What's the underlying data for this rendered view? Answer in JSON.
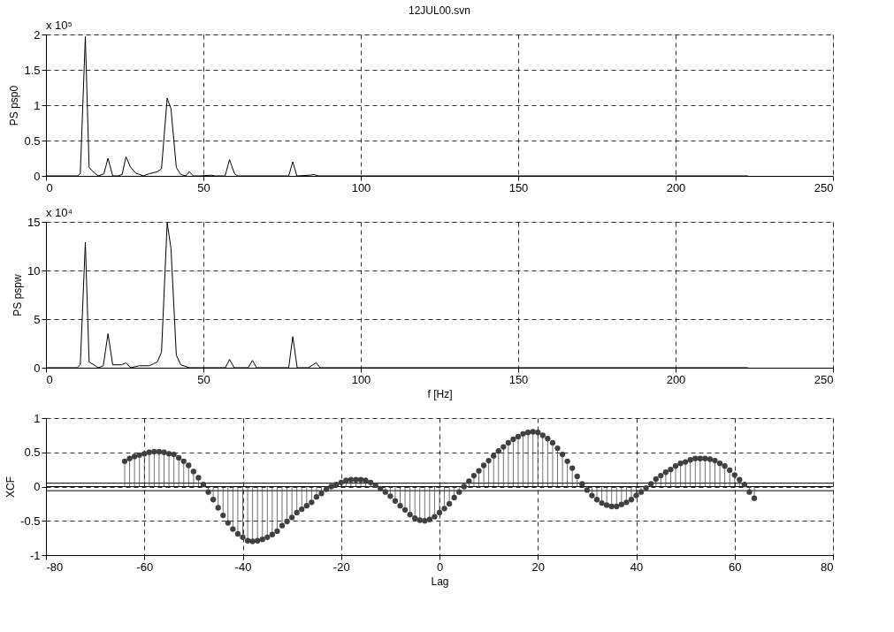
{
  "chart_data": [
    {
      "type": "line",
      "title": "12JUL00.svn",
      "ylabel": "PS psp0",
      "annotations": [
        "x 10⁵"
      ],
      "series": [
        {
          "color": "#000000",
          "x": [
            0,
            9.9,
            10.9,
            12.5,
            13.7,
            15.2,
            16.6,
            18.4,
            19.7,
            21.2,
            22.8,
            24.2,
            25.4,
            26.9,
            28.5,
            30.9,
            32.7,
            35.4,
            36.7,
            38.5,
            39.7,
            41.4,
            42.8,
            44.4,
            45.5,
            46.8,
            48.8,
            52.4,
            53.8,
            56.9,
            58.3,
            59.9,
            60.9,
            77.1,
            78.4,
            79.7,
            83.8,
            85.1,
            86.5,
            223
          ],
          "values": [
            0,
            0,
            0.03,
            1.97,
            0.12,
            0.05,
            0,
            0.03,
            0.25,
            0,
            0,
            0.02,
            0.27,
            0.12,
            0.04,
            0,
            0.03,
            0.06,
            0.1,
            1.1,
            0.95,
            0.12,
            0.02,
            0,
            0.06,
            0,
            0,
            0.01,
            0,
            0,
            0.23,
            0.03,
            0,
            0,
            0.2,
            0,
            0.01,
            0.02,
            0,
            0
          ]
        }
      ],
      "xlim": [
        0,
        250
      ],
      "xticks": [
        0,
        50,
        100,
        150,
        200,
        250
      ],
      "ylim": [
        0,
        2
      ],
      "yticks": [
        0,
        0.5,
        1,
        1.5,
        2
      ],
      "grid": true,
      "line_style": "solid"
    },
    {
      "type": "line",
      "xlabel": "f [Hz]",
      "ylabel": "PS pspw",
      "annotations": [
        "x 10⁴"
      ],
      "series": [
        {
          "color": "#000000",
          "x": [
            0,
            9.9,
            10.9,
            12.5,
            13.7,
            15.2,
            16.6,
            18.2,
            19.7,
            21.2,
            24,
            25.4,
            26.9,
            29.6,
            32.7,
            34.1,
            35.4,
            36.7,
            38.5,
            39.7,
            41.4,
            42.8,
            45.5,
            57,
            58.3,
            59.8,
            64.2,
            65.6,
            66.9,
            77.1,
            78.4,
            79.8,
            83.3,
            85.8,
            87.1,
            223
          ],
          "values": [
            0,
            0,
            0.3,
            12.9,
            0.6,
            0.3,
            0,
            0.2,
            3.5,
            0.3,
            0.3,
            0.5,
            0,
            0.2,
            0.2,
            0.4,
            0.6,
            1.6,
            14.9,
            12.3,
            1.3,
            0.3,
            0,
            0,
            0.85,
            0,
            0,
            0.75,
            0,
            0,
            3.2,
            0,
            0,
            0.5,
            0,
            0
          ]
        }
      ],
      "xlim": [
        0,
        250
      ],
      "xticks": [
        0,
        50,
        100,
        150,
        200,
        250
      ],
      "ylim": [
        0,
        15
      ],
      "yticks": [
        0,
        5,
        10,
        15
      ],
      "grid": true,
      "line_style": "solid"
    },
    {
      "type": "lollipop",
      "xlabel": "Lag",
      "ylabel": "XCF",
      "series": [
        {
          "color": "#404040",
          "x": [
            -64,
            -63,
            -62,
            -61,
            -60,
            -59,
            -58,
            -57,
            -56,
            -55,
            -54,
            -53,
            -52,
            -51,
            -50,
            -49,
            -48,
            -47,
            -46,
            -45,
            -44,
            -43,
            -42,
            -41,
            -40,
            -39,
            -38,
            -37,
            -36,
            -35,
            -34,
            -33,
            -32,
            -31,
            -30,
            -29,
            -28,
            -27,
            -26,
            -25,
            -24,
            -23,
            -22,
            -21,
            -20,
            -19,
            -18,
            -17,
            -16,
            -15,
            -14,
            -13,
            -12,
            -11,
            -10,
            -9,
            -8,
            -7,
            -6,
            -5,
            -4,
            -3,
            -2,
            -1,
            0,
            1,
            2,
            3,
            4,
            5,
            6,
            7,
            8,
            9,
            10,
            11,
            12,
            13,
            14,
            15,
            16,
            17,
            18,
            19,
            20,
            21,
            22,
            23,
            24,
            25,
            26,
            27,
            28,
            29,
            30,
            31,
            32,
            33,
            34,
            35,
            36,
            37,
            38,
            39,
            40,
            41,
            42,
            43,
            44,
            45,
            46,
            47,
            48,
            49,
            50,
            51,
            52,
            53,
            54,
            55,
            56,
            57,
            58,
            59,
            60,
            61,
            62,
            63,
            64
          ],
          "values": [
            0.37,
            0.41,
            0.44,
            0.46,
            0.48,
            0.5,
            0.51,
            0.51,
            0.5,
            0.48,
            0.47,
            0.42,
            0.37,
            0.31,
            0.22,
            0.13,
            0.03,
            -0.08,
            -0.19,
            -0.31,
            -0.42,
            -0.53,
            -0.62,
            -0.69,
            -0.74,
            -0.79,
            -0.8,
            -0.79,
            -0.77,
            -0.74,
            -0.7,
            -0.65,
            -0.57,
            -0.51,
            -0.45,
            -0.38,
            -0.33,
            -0.28,
            -0.23,
            -0.15,
            -0.1,
            -0.04,
            0,
            0.03,
            0.06,
            0.09,
            0.1,
            0.1,
            0.1,
            0.09,
            0.06,
            0.02,
            -0.03,
            -0.08,
            -0.14,
            -0.21,
            -0.28,
            -0.34,
            -0.41,
            -0.46,
            -0.49,
            -0.5,
            -0.48,
            -0.44,
            -0.38,
            -0.32,
            -0.25,
            -0.16,
            -0.08,
            0,
            0.08,
            0.16,
            0.23,
            0.31,
            0.38,
            0.45,
            0.52,
            0.58,
            0.64,
            0.69,
            0.73,
            0.77,
            0.79,
            0.8,
            0.79,
            0.75,
            0.7,
            0.64,
            0.56,
            0.47,
            0.37,
            0.27,
            0.15,
            0.04,
            -0.05,
            -0.13,
            -0.19,
            -0.24,
            -0.27,
            -0.29,
            -0.29,
            -0.26,
            -0.23,
            -0.19,
            -0.13,
            -0.08,
            -0.02,
            0.04,
            0.11,
            0.16,
            0.21,
            0.25,
            0.3,
            0.34,
            0.36,
            0.39,
            0.41,
            0.41,
            0.41,
            0.4,
            0.38,
            0.34,
            0.3,
            0.24,
            0.17,
            0.1,
            0.03,
            -0.08,
            -0.17
          ]
        }
      ],
      "ref_lines": [
        {
          "axis": "y",
          "value": 0.05,
          "color": "#000000"
        },
        {
          "axis": "y",
          "value": 0,
          "color": "#000000"
        },
        {
          "axis": "y",
          "value": -0.06,
          "color": "#000000"
        }
      ],
      "xlim": [
        -80,
        80
      ],
      "xticks": [
        -80,
        -60,
        -40,
        -20,
        0,
        20,
        40,
        60,
        80
      ],
      "ylim": [
        -1,
        1
      ],
      "yticks": [
        -1,
        -0.5,
        0,
        0.5,
        1
      ],
      "grid": true,
      "marker": "circle"
    }
  ]
}
